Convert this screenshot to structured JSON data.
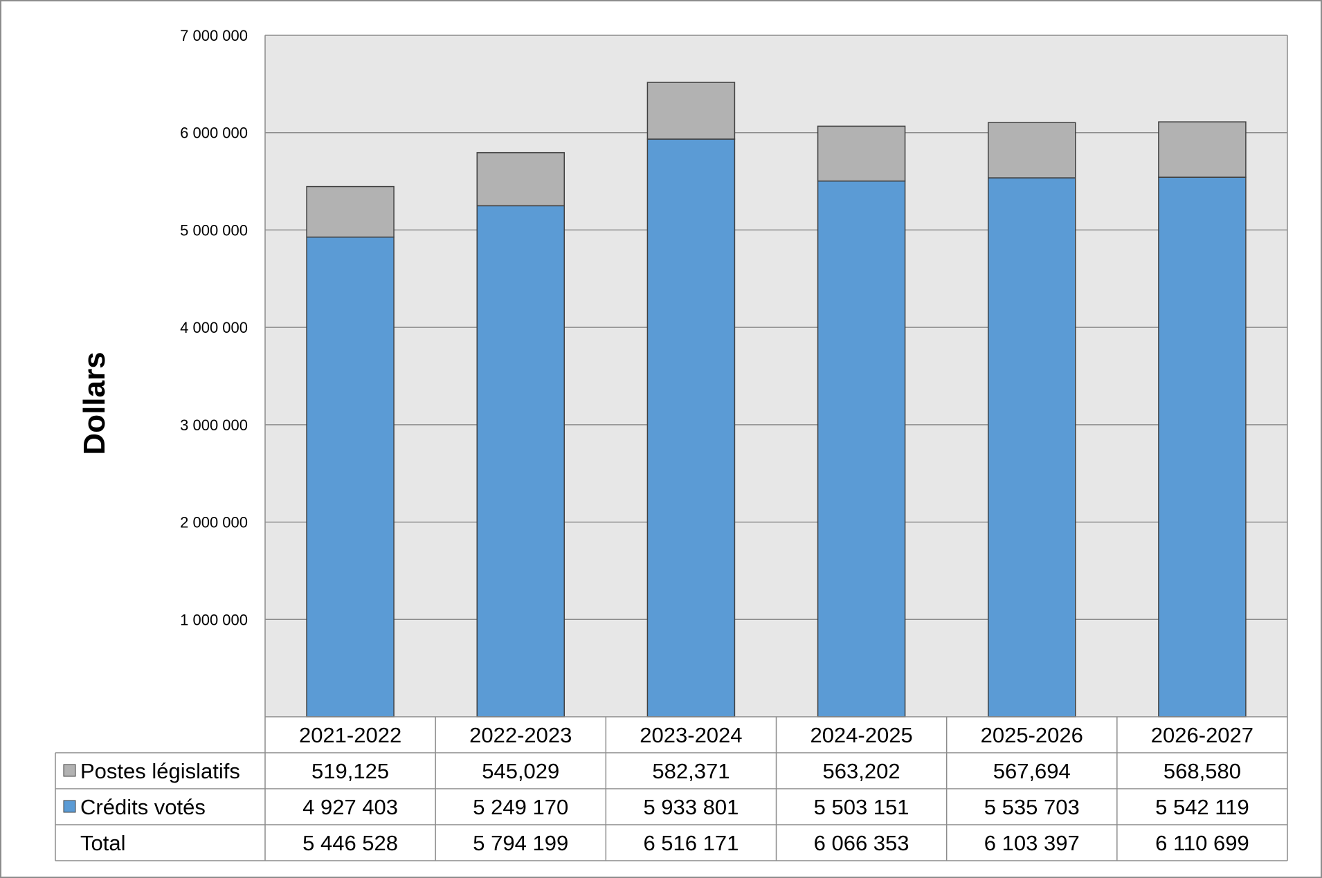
{
  "chart_data": {
    "type": "bar",
    "stacked": true,
    "ylabel": "Dollars",
    "ylim": [
      0,
      7000000
    ],
    "yticks": [
      1000000,
      2000000,
      3000000,
      4000000,
      5000000,
      6000000,
      7000000
    ],
    "ytick_labels": [
      "1 000 000",
      "2 000 000",
      "3 000 000",
      "4 000 000",
      "5 000 000",
      "6 000 000",
      "7 000 000"
    ],
    "grid": true,
    "legend_placement": "table-rows",
    "categories": [
      "2021-2022",
      "2022-2023",
      "2023-2024",
      "2024-2025",
      "2025-2026",
      "2026-2027"
    ],
    "series": [
      {
        "name": "Crédits votés",
        "color": "#5b9bd5",
        "values": [
          4927403,
          5249170,
          5933801,
          5503151,
          5535703,
          5542119
        ],
        "labels": [
          "4 927 403",
          "5 249 170",
          "5 933 801",
          "5 503 151",
          "5 535 703",
          "5 542 119"
        ]
      },
      {
        "name": "Postes législatifs",
        "color": "#b2b2b2",
        "values": [
          519125,
          545029,
          582371,
          563202,
          567694,
          568580
        ],
        "labels": [
          "519,125",
          "545,029",
          "582,371",
          "563,202",
          "567,694",
          "568,580"
        ]
      }
    ],
    "total": {
      "name": "Total",
      "values": [
        5446528,
        5794199,
        6516171,
        6066353,
        6103397,
        6110699
      ],
      "labels": [
        "5 446 528",
        "5 794 199",
        "6 516 171",
        "6 066 353",
        "6 103 397",
        "6 110 699"
      ]
    },
    "table_row_order": [
      "Postes législatifs",
      "Crédits votés",
      "Total"
    ]
  }
}
